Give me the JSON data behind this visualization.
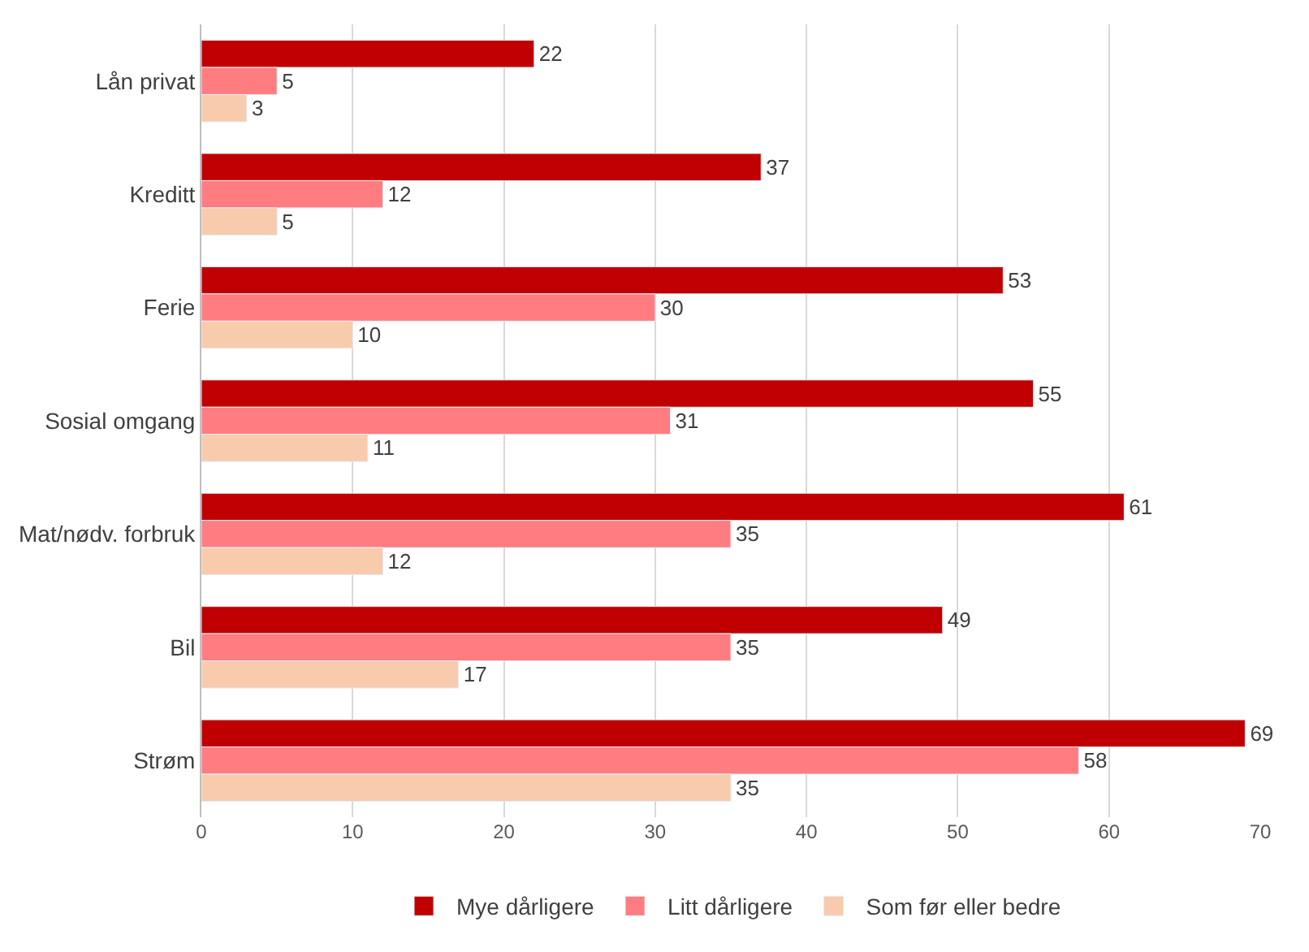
{
  "chart_data": {
    "type": "bar",
    "orientation": "horizontal",
    "categories": [
      "Lån privat",
      "Kreditt",
      "Ferie",
      "Sosial omgang",
      "Mat/nødv. forbruk",
      "Bil",
      "Strøm"
    ],
    "series": [
      {
        "name": "Mye dårligere",
        "color": "#c00000",
        "values": [
          22,
          37,
          53,
          55,
          61,
          49,
          69
        ]
      },
      {
        "name": "Litt dårligere",
        "color": "#ff7c80",
        "values": [
          5,
          12,
          30,
          31,
          35,
          35,
          58
        ]
      },
      {
        "name": "Som før eller bedre",
        "color": "#f8cbad",
        "values": [
          3,
          5,
          10,
          11,
          12,
          17,
          35
        ]
      }
    ],
    "xlim": [
      0,
      70
    ],
    "xticks": [
      0,
      10,
      20,
      30,
      40,
      50,
      60,
      70
    ],
    "grid": "x",
    "legend": "bottom",
    "data_labels": true
  }
}
